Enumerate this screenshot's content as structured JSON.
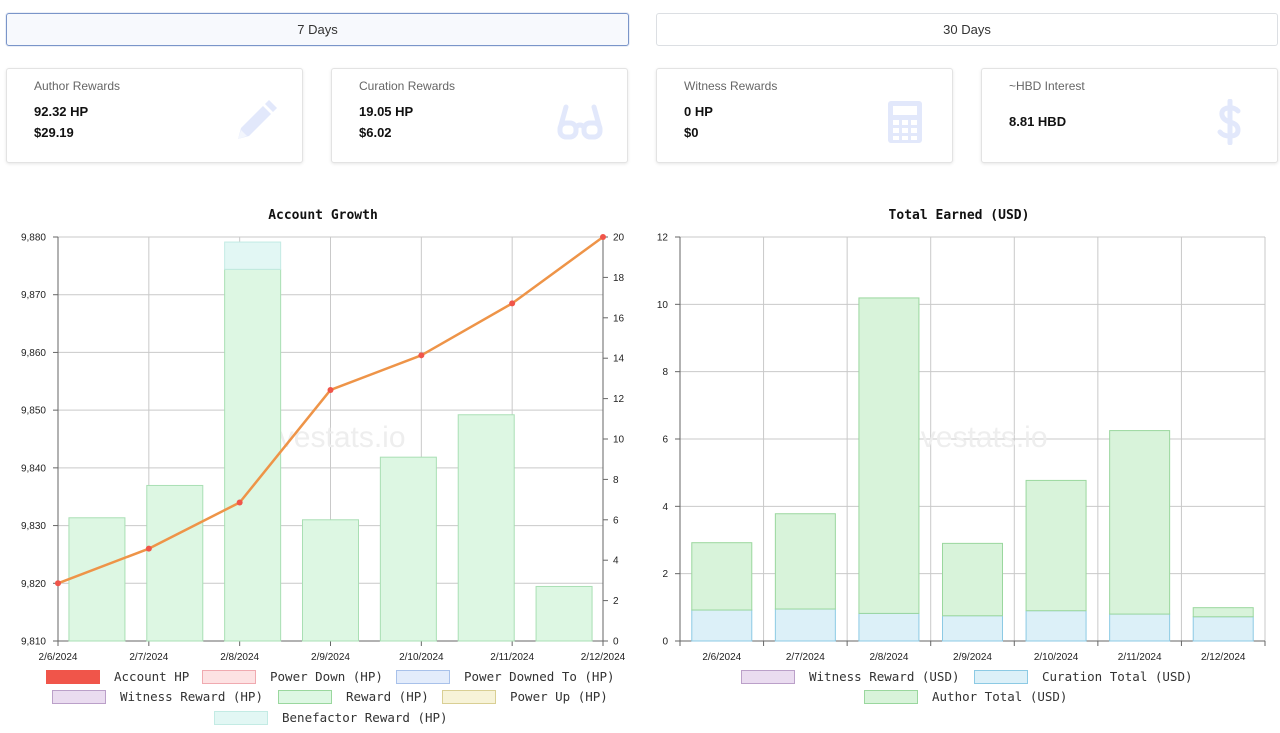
{
  "tabs": [
    {
      "label": "7 Days",
      "active": true
    },
    {
      "label": "30 Days",
      "active": false
    }
  ],
  "cards": [
    {
      "title": "Author Rewards",
      "line1": "92.32 HP",
      "line2": "$29.19",
      "icon": "pencil-icon"
    },
    {
      "title": "Curation Rewards",
      "line1": "19.05 HP",
      "line2": "$6.02",
      "icon": "glasses-icon"
    },
    {
      "title": "Witness Rewards",
      "line1": "0 HP",
      "line2": "$0",
      "icon": "calculator-icon"
    },
    {
      "title": "~HBD Interest",
      "line1": "8.81 HBD",
      "line2": "",
      "icon": "dollar-icon"
    }
  ],
  "watermark": "hivestats.io",
  "colors": {
    "icon": "#e2e8fb",
    "reward_fill": "#ddf7e3",
    "reward_stroke": "#a9dfb4",
    "benefactor_fill": "#e2f7f4",
    "benefactor_stroke": "#c3ebe4",
    "account_hp": "#f0554a",
    "account_line": "#ee9448",
    "curation_fill": "#dcf0f8",
    "curation_stroke": "#8ccae4",
    "author_fill": "#d8f3da",
    "author_stroke": "#9ad79e"
  },
  "chart_data": [
    {
      "type": "bar",
      "title": "Account Growth",
      "categories": [
        "2/6/2024",
        "2/7/2024",
        "2/8/2024",
        "2/9/2024",
        "2/10/2024",
        "2/11/2024",
        "2/12/2024"
      ],
      "left_axis": {
        "ylim": [
          9810,
          9880
        ],
        "ticks": [
          "9,810",
          "9,820",
          "9,830",
          "9,840",
          "9,850",
          "9,860",
          "9,870",
          "9,880"
        ]
      },
      "right_axis": {
        "ylim": [
          0,
          20
        ],
        "ticks": [
          "0",
          "2",
          "4",
          "6",
          "8",
          "10",
          "12",
          "14",
          "16",
          "18",
          "20"
        ]
      },
      "series": [
        {
          "name": "Reward (HP)",
          "axis": "right",
          "kind": "bar",
          "values": [
            6.1,
            7.7,
            18.4,
            6.0,
            9.1,
            11.2,
            2.7
          ]
        },
        {
          "name": "Benefactor Reward (HP)",
          "axis": "right",
          "kind": "bar",
          "stack_on": "Reward (HP)",
          "values": [
            0,
            0,
            1.35,
            0,
            0,
            0,
            0
          ]
        },
        {
          "name": "Account HP",
          "axis": "left",
          "kind": "line",
          "values": [
            9820,
            9826,
            9834,
            9853.5,
            9859.5,
            9868.5,
            9880
          ]
        }
      ],
      "legend": [
        {
          "name": "Account HP",
          "fill": "#f0554a",
          "stroke": "#f0554a"
        },
        {
          "name": "Power Down (HP)",
          "fill": "#fde2e3",
          "stroke": "#f0aab0"
        },
        {
          "name": "Power Downed To (HP)",
          "fill": "#e3ecfb",
          "stroke": "#a8c1ea"
        },
        {
          "name": "Witness Reward (HP)",
          "fill": "#eadcf0",
          "stroke": "#bba0c9"
        },
        {
          "name": "Reward (HP)",
          "fill": "#ddf7e3",
          "stroke": "#9ad79e"
        },
        {
          "name": "Power Up (HP)",
          "fill": "#f7f3d8",
          "stroke": "#d9cf94"
        },
        {
          "name": "Benefactor Reward (HP)",
          "fill": "#e2f7f4",
          "stroke": "#c3ebe4"
        }
      ]
    },
    {
      "type": "bar",
      "title": "Total Earned (USD)",
      "categories": [
        "2/6/2024",
        "2/7/2024",
        "2/8/2024",
        "2/9/2024",
        "2/10/2024",
        "2/11/2024",
        "2/12/2024"
      ],
      "ylim": [
        0,
        12
      ],
      "ticks": [
        "0",
        "2",
        "4",
        "6",
        "8",
        "10",
        "12"
      ],
      "series": [
        {
          "name": "Witness Reward (USD)",
          "values": [
            0,
            0,
            0,
            0,
            0,
            0,
            0
          ]
        },
        {
          "name": "Curation Total (USD)",
          "values": [
            0.92,
            0.95,
            0.82,
            0.75,
            0.9,
            0.8,
            0.72
          ]
        },
        {
          "name": "Author Total (USD)",
          "values": [
            2.0,
            2.83,
            9.37,
            2.15,
            3.87,
            5.45,
            0.27
          ]
        }
      ],
      "legend": [
        {
          "name": "Witness Reward (USD)",
          "fill": "#eadcf0",
          "stroke": "#bba0c9"
        },
        {
          "name": "Curation Total (USD)",
          "fill": "#dcf0f8",
          "stroke": "#8ccae4"
        },
        {
          "name": "Author Total (USD)",
          "fill": "#d8f3da",
          "stroke": "#9ad79e"
        }
      ]
    }
  ]
}
